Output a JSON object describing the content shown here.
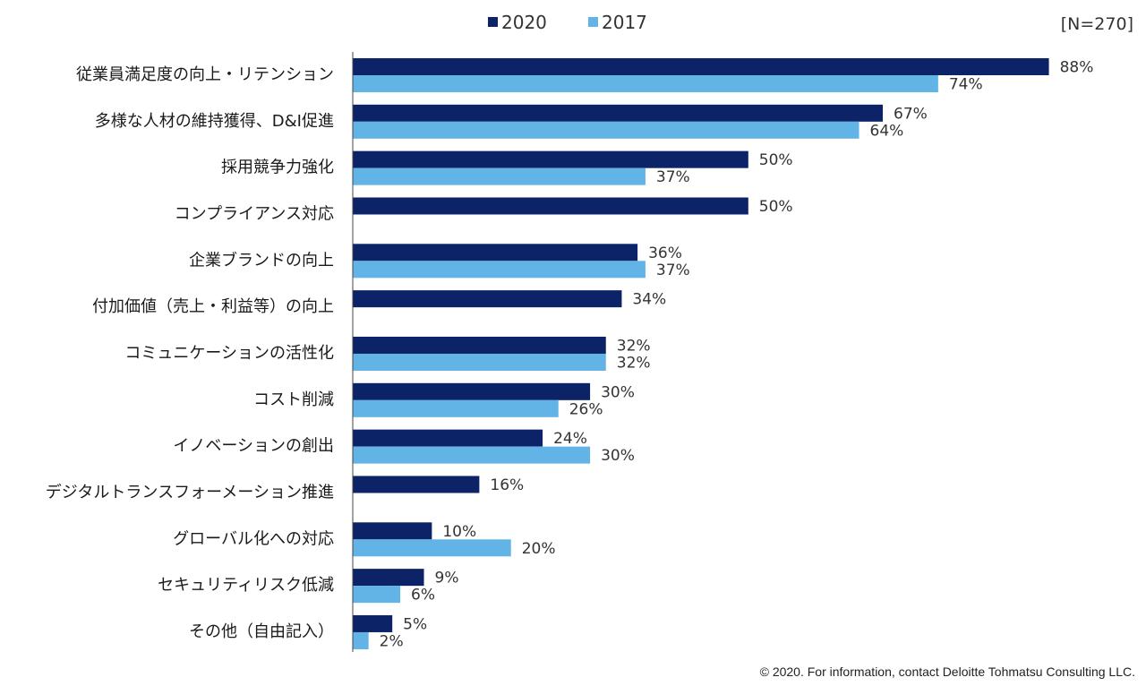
{
  "chart_data": {
    "type": "bar",
    "orientation": "horizontal",
    "title": "",
    "note": "[N=270]",
    "xlim": [
      0,
      100
    ],
    "value_suffix": "%",
    "legend_position": "top-center",
    "categories": [
      "従業員満足度の向上・リテンション",
      "多様な人材の維持獲得、D&I促進",
      "採用競争力強化",
      "コンプライアンス対応",
      "企業ブランドの向上",
      "付加価値（売上・利益等）の向上",
      "コミュニケーションの活性化",
      "コスト削減",
      "イノベーションの創出",
      "デジタルトランスフォーメーション推進",
      "グローバル化への対応",
      "セキュリティリスク低減",
      "その他（自由記入）"
    ],
    "series": [
      {
        "name": "2020",
        "color": "#0d2367",
        "values": [
          88,
          67,
          50,
          50,
          36,
          34,
          32,
          30,
          24,
          16,
          10,
          9,
          5
        ]
      },
      {
        "name": "2017",
        "color": "#63b4e6",
        "values": [
          74,
          64,
          37,
          null,
          37,
          null,
          32,
          26,
          30,
          null,
          20,
          6,
          2
        ]
      }
    ]
  },
  "footer": {
    "copyright": "© 2020. For information, contact Deloitte Tohmatsu Consulting LLC."
  },
  "colors": {
    "axis": "#444444"
  }
}
